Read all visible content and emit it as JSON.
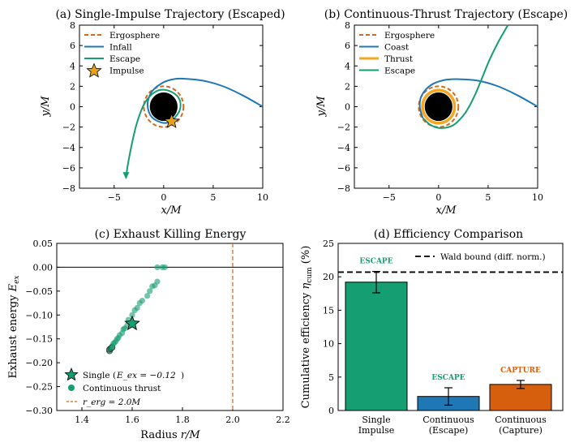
{
  "colors": {
    "ergo": "#d2691e",
    "coast": "#1f77b4",
    "escape": "#159e72",
    "thrust": "#f5a623",
    "impulse": "#e8a21a",
    "bh": "#000000",
    "capture": "#d65f0e",
    "wald": "#000000"
  },
  "chart_data": [
    {
      "type": "line",
      "id": "a",
      "title": "(a) Single-Impulse Trajectory (Escaped)",
      "xlabel": "x/M",
      "ylabel": "y/M",
      "xlim": [
        -8.5,
        10
      ],
      "ylim": [
        -8,
        8
      ],
      "xticks": [
        -5,
        0,
        5,
        10
      ],
      "yticks": [
        -8,
        -6,
        -4,
        -2,
        0,
        2,
        4,
        6,
        8
      ],
      "legend": [
        "Ergosphere",
        "Infall",
        "Escape",
        "Impulse"
      ],
      "ergosphere_radius": 2.0,
      "horizon_radius": 1.4,
      "impulse_point": [
        0.8,
        -1.45
      ],
      "series": [
        {
          "name": "Infall",
          "points": [
            [
              10,
              0
            ],
            [
              8,
              1.1
            ],
            [
              6,
              2
            ],
            [
              4,
              2.55
            ],
            [
              2,
              2.75
            ],
            [
              1,
              2.7
            ],
            [
              0,
              2.4
            ],
            [
              -1.1,
              1.6
            ],
            [
              -1.6,
              0.5
            ],
            [
              -1.5,
              -0.5
            ],
            [
              -1,
              -1.2
            ],
            [
              0,
              -1.6
            ],
            [
              0.8,
              -1.45
            ]
          ]
        },
        {
          "name": "Escape",
          "points": [
            [
              0.8,
              -1.45
            ],
            [
              1.6,
              -0.4
            ],
            [
              1.6,
              0.7
            ],
            [
              0.8,
              1.45
            ],
            [
              -0.3,
              1.65
            ],
            [
              -1.2,
              1.2
            ],
            [
              -2,
              0.2
            ],
            [
              -2.7,
              -1.6
            ],
            [
              -3.2,
              -3.6
            ],
            [
              -3.6,
              -5.6
            ],
            [
              -3.8,
              -6.9
            ]
          ]
        }
      ]
    },
    {
      "type": "line",
      "id": "b",
      "title": "(b) Continuous-Thrust Trajectory (Escape)",
      "xlabel": "x/M",
      "ylabel": "y/M",
      "xlim": [
        -8.5,
        10
      ],
      "ylim": [
        -8,
        8
      ],
      "xticks": [
        -5,
        0,
        5,
        10
      ],
      "yticks": [
        -8,
        -6,
        -4,
        -2,
        0,
        2,
        4,
        6,
        8
      ],
      "legend": [
        "Ergosphere",
        "Coast",
        "Thrust",
        "Escape"
      ],
      "ergosphere_radius": 2.0,
      "horizon_radius": 1.4,
      "thrust_radius": 1.62,
      "series": [
        {
          "name": "Coast",
          "points": [
            [
              10,
              0
            ],
            [
              8,
              1.1
            ],
            [
              6,
              2
            ],
            [
              4,
              2.55
            ],
            [
              2,
              2.7
            ],
            [
              0.5,
              2.6
            ],
            [
              -0.8,
              2.1
            ],
            [
              -1.7,
              1.1
            ],
            [
              -1.9,
              0
            ],
            [
              -1.6,
              -1.1
            ]
          ]
        },
        {
          "name": "Escape",
          "points": [
            [
              -1.6,
              -1.1
            ],
            [
              -0.8,
              -1.8
            ],
            [
              0.2,
              -2.1
            ],
            [
              1.5,
              -1.8
            ],
            [
              2.7,
              -0.6
            ],
            [
              3.6,
              1
            ],
            [
              4.3,
              2.6
            ],
            [
              5.1,
              4.5
            ],
            [
              6,
              6.3
            ],
            [
              6.7,
              7.5
            ],
            [
              7,
              8
            ]
          ]
        }
      ]
    },
    {
      "type": "scatter",
      "id": "c",
      "title": "(c) Exhaust Killing Energy",
      "xlabel": "Radius r/M",
      "ylabel": "Exhaust energy E_ex",
      "xlim": [
        1.3,
        2.2
      ],
      "ylim": [
        -0.3,
        0.05
      ],
      "xticks": [
        "1.4",
        "1.6",
        "1.8",
        "2.0",
        "2.2"
      ],
      "yticks": [
        "0.05",
        "0.00",
        "−0.05",
        "−0.10",
        "−0.15",
        "−0.20",
        "−0.25",
        "−0.30"
      ],
      "legend": [
        "Single (E_ex = −0.12)",
        "Continuous thrust",
        "r_erg = 2.0M"
      ],
      "single_point": [
        1.6,
        -0.118
      ],
      "ergosphere_r": 2.0,
      "series": [
        {
          "name": "Continuous thrust",
          "points": [
            [
              1.51,
              -0.175
            ],
            [
              1.51,
              -0.172
            ],
            [
              1.515,
              -0.17
            ],
            [
              1.52,
              -0.165
            ],
            [
              1.52,
              -0.168
            ],
            [
              1.525,
              -0.16
            ],
            [
              1.53,
              -0.158
            ],
            [
              1.535,
              -0.155
            ],
            [
              1.54,
              -0.15
            ],
            [
              1.545,
              -0.148
            ],
            [
              1.55,
              -0.142
            ],
            [
              1.56,
              -0.138
            ],
            [
              1.565,
              -0.13
            ],
            [
              1.57,
              -0.128
            ],
            [
              1.58,
              -0.122
            ],
            [
              1.585,
              -0.11
            ],
            [
              1.6,
              -0.1
            ],
            [
              1.61,
              -0.09
            ],
            [
              1.62,
              -0.085
            ],
            [
              1.63,
              -0.075
            ],
            [
              1.64,
              -0.07
            ],
            [
              1.66,
              -0.06
            ],
            [
              1.67,
              -0.05
            ],
            [
              1.68,
              -0.04
            ],
            [
              1.69,
              -0.038
            ],
            [
              1.7,
              -0.03
            ],
            [
              1.72,
              0.0
            ],
            [
              1.7,
              0.0
            ],
            [
              1.73,
              0.0
            ]
          ]
        }
      ]
    },
    {
      "type": "bar",
      "id": "d",
      "title": "(d) Efficiency Comparison",
      "xlabel": "",
      "ylabel": "Cumulative efficiency η_cum (%)",
      "ylim": [
        0,
        25
      ],
      "yticks": [
        0,
        5,
        10,
        15,
        20,
        25
      ],
      "categories": [
        "Single Impulse",
        "Continuous (Escape)",
        "Continuous (Capture)"
      ],
      "category_lines": [
        [
          "Single",
          "Impulse"
        ],
        [
          "Continuous",
          "(Escape)"
        ],
        [
          "Continuous",
          "(Capture)"
        ]
      ],
      "values": [
        19.2,
        2.1,
        3.9
      ],
      "errors": [
        1.6,
        1.3,
        0.6
      ],
      "annotations": [
        "ESCAPE",
        "ESCAPE",
        "CAPTURE"
      ],
      "wald_bound": 20.7,
      "legend": [
        "Wald bound (diff. norm.)"
      ]
    }
  ]
}
